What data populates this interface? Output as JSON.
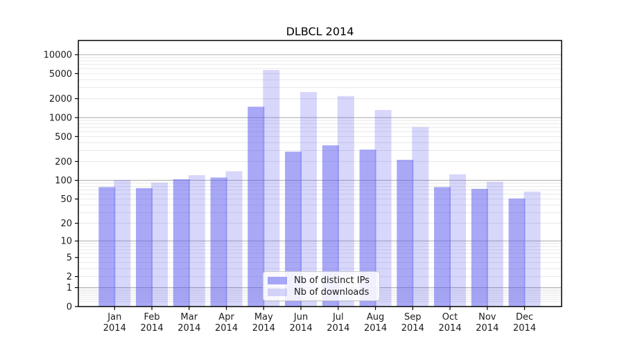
{
  "figure": {
    "title": "DLBCL 2014"
  },
  "chart_data": {
    "type": "bar",
    "title": "DLBCL 2014",
    "xlabel": "",
    "ylabel": "",
    "y_scale": "log1p",
    "ylim": [
      0,
      16500
    ],
    "grid": true,
    "legend_position": "inside-bottom-center",
    "categories": [
      "Jan",
      "Feb",
      "Mar",
      "Apr",
      "May",
      "Jun",
      "Jul",
      "Aug",
      "Sep",
      "Oct",
      "Nov",
      "Dec"
    ],
    "x_tick_year": "2014",
    "series": [
      {
        "name": "Nb of distinct IPs",
        "color": "rgba(88,88,240,0.52)",
        "flat_hex": "#a8a8f7",
        "values": [
          78,
          75,
          104,
          111,
          1490,
          287,
          362,
          309,
          213,
          78,
          73,
          51
        ]
      },
      {
        "name": "Nb of downloads",
        "color": "rgba(88,88,240,0.24)",
        "flat_hex": "#d7d7fa",
        "values": [
          101,
          92,
          121,
          140,
          5700,
          2550,
          2200,
          1320,
          707,
          125,
          95,
          66
        ]
      }
    ],
    "y_ticks": [
      0,
      1,
      2,
      5,
      10,
      20,
      50,
      100,
      200,
      500,
      1000,
      2000,
      5000,
      10000
    ],
    "major_gridlines": [
      1,
      10,
      100,
      1000,
      10000
    ],
    "minor_gridlines": [
      0.2,
      0.3,
      0.4,
      0.5,
      0.6,
      0.7,
      0.8,
      0.9,
      2,
      3,
      4,
      5,
      6,
      7,
      8,
      9,
      20,
      30,
      40,
      50,
      60,
      70,
      80,
      90,
      200,
      300,
      400,
      500,
      600,
      700,
      800,
      900,
      2000,
      3000,
      4000,
      5000,
      6000,
      7000,
      8000,
      9000
    ],
    "colors": {
      "major_grid": "#b0b0b0",
      "minor_grid": "#e7e7e7",
      "frame": "#000000",
      "tick_text": "#1a1a1a"
    }
  }
}
